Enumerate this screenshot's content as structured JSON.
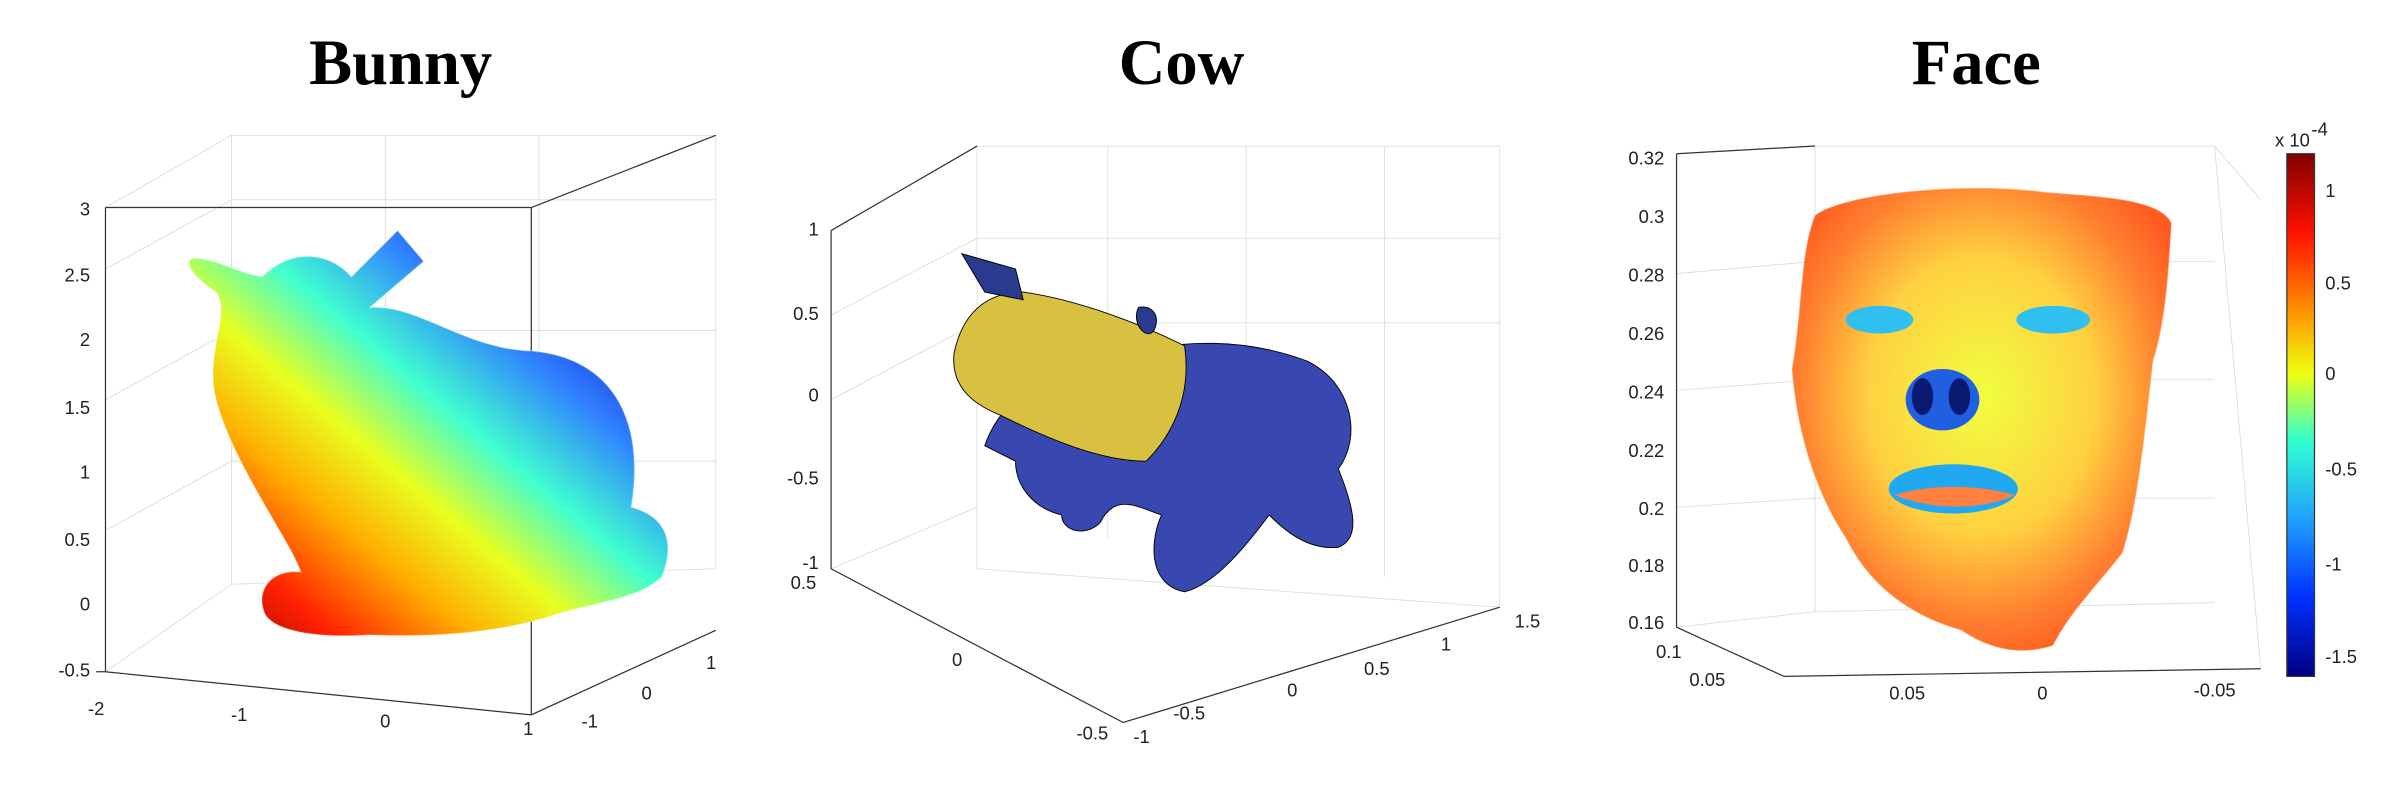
{
  "figure": {
    "panels": [
      {
        "title": "Bunny",
        "z_ticks": [
          "3",
          "2.5",
          "2",
          "1.5",
          "1",
          "0.5",
          "0",
          "-0.5"
        ],
        "x_ticks": [
          "-2",
          "-1",
          "0",
          "1"
        ],
        "y_ticks": [
          "-1",
          "0",
          "1"
        ]
      },
      {
        "title": "Cow",
        "z_ticks": [
          "1",
          "0.5",
          "0",
          "-0.5",
          "-1"
        ],
        "x_ticks": [
          "-1",
          "-0.5",
          "0",
          "0.5",
          "1",
          "1.5"
        ],
        "y_ticks": [
          "0.5",
          "0",
          "-0.5"
        ]
      },
      {
        "title": "Face",
        "z_ticks": [
          "0.32",
          "0.3",
          "0.28",
          "0.26",
          "0.24",
          "0.22",
          "0.2",
          "0.18",
          "0.16"
        ],
        "x_ticks": [
          "0.05",
          "0",
          "-0.05"
        ],
        "y_ticks": [
          "0.1",
          "0.05"
        ],
        "colorbar": {
          "multiplier": "x 10",
          "exponent": "-4",
          "ticks": [
            "1",
            "0.5",
            "0",
            "-0.5",
            "-1",
            "-1.5"
          ]
        }
      }
    ]
  }
}
